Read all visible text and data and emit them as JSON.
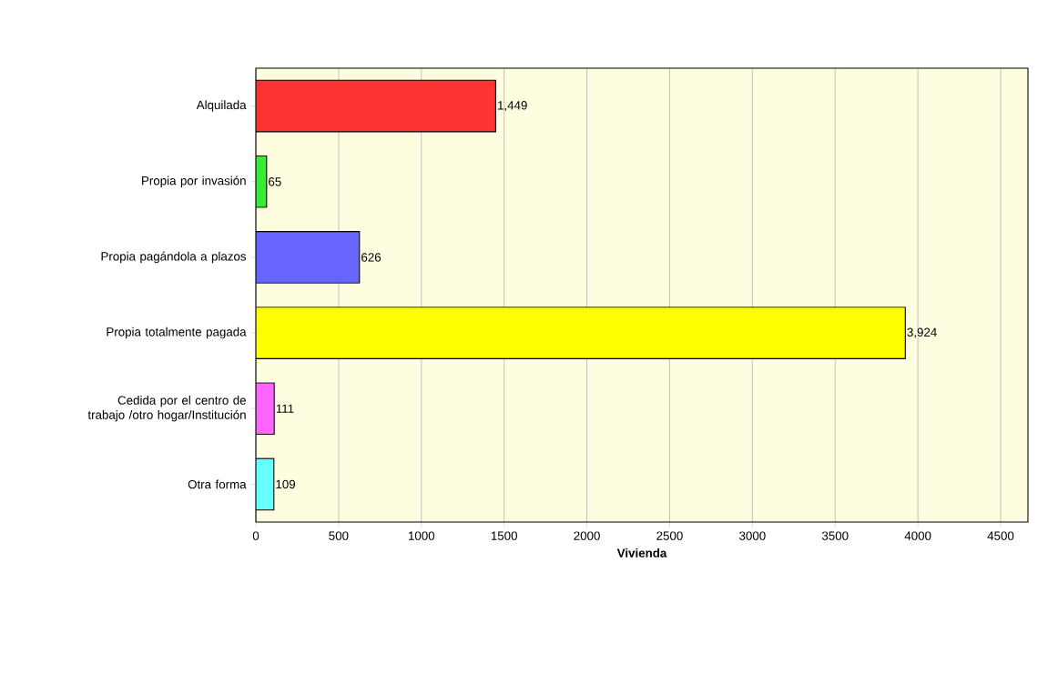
{
  "chart_data": {
    "type": "bar",
    "orientation": "horizontal",
    "xlabel": "Vivienda",
    "categories": [
      "Alquilada",
      "Propia por invasión",
      "Propia pagándola a plazos",
      "Propia totalmente pagada",
      "Cedida por el centro de trabajo /otro hogar/Institución",
      "Otra forma"
    ],
    "values": [
      1449,
      65,
      626,
      3924,
      111,
      109
    ],
    "value_labels": [
      "1,449",
      "65",
      "626",
      "3,924",
      "111",
      "109"
    ],
    "colors": [
      "#ff3333",
      "#33ee33",
      "#6666ff",
      "#ffff00",
      "#ff66ff",
      "#66ffff"
    ],
    "xlim": [
      0,
      4665
    ],
    "xticks": [
      0,
      500,
      1000,
      1500,
      2000,
      2500,
      3000,
      3500,
      4000,
      4500
    ],
    "grid": "x"
  }
}
